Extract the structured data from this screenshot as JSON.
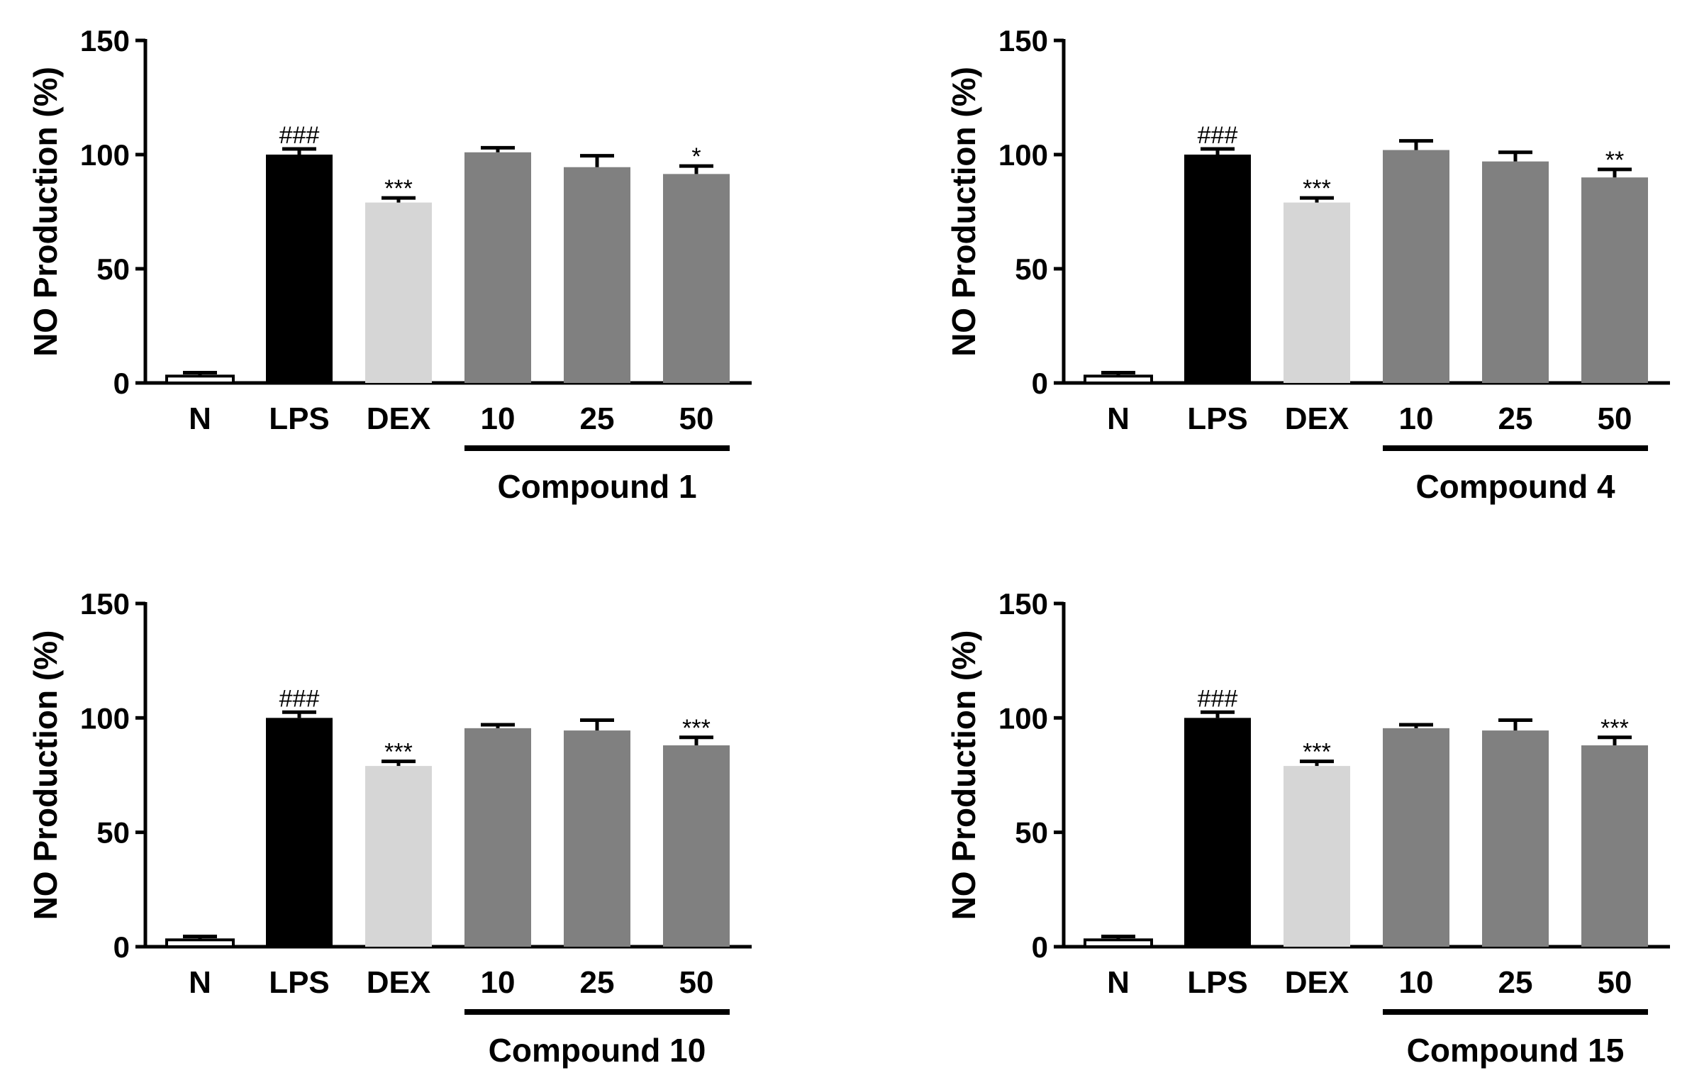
{
  "chart_data": [
    {
      "type": "bar",
      "ylabel": "NO Production (%)",
      "ylim": [
        0,
        150
      ],
      "yticks": [
        "0",
        "50",
        "100",
        "150"
      ],
      "categories": [
        "N",
        "LPS",
        "DEX",
        "10",
        "25",
        "50"
      ],
      "values": [
        3,
        100,
        79,
        101,
        94.5,
        91.5
      ],
      "errors": [
        1.5,
        2.5,
        2,
        2,
        5,
        3.5
      ],
      "colors": [
        "#ffffff",
        "#000000",
        "#d6d6d6",
        "#808080",
        "#808080",
        "#808080"
      ],
      "annotations": [
        "",
        "###",
        "***",
        "",
        "",
        "*"
      ],
      "group_label": "Compound 1",
      "group_categories": [
        "10",
        "25",
        "50"
      ]
    },
    {
      "type": "bar",
      "ylabel": "NO Production (%)",
      "ylim": [
        0,
        150
      ],
      "yticks": [
        "0",
        "50",
        "100",
        "150"
      ],
      "categories": [
        "N",
        "LPS",
        "DEX",
        "10",
        "25",
        "50"
      ],
      "values": [
        3,
        100,
        79,
        102,
        97,
        90
      ],
      "errors": [
        1.5,
        2.5,
        2,
        4,
        4,
        3.5
      ],
      "colors": [
        "#ffffff",
        "#000000",
        "#d6d6d6",
        "#808080",
        "#808080",
        "#808080"
      ],
      "annotations": [
        "",
        "###",
        "***",
        "",
        "",
        "**"
      ],
      "group_label": "Compound 4",
      "group_categories": [
        "10",
        "25",
        "50"
      ]
    },
    {
      "type": "bar",
      "ylabel": "NO Production (%)",
      "ylim": [
        0,
        150
      ],
      "yticks": [
        "0",
        "50",
        "100",
        "150"
      ],
      "categories": [
        "N",
        "LPS",
        "DEX",
        "10",
        "25",
        "50"
      ],
      "values": [
        3,
        100,
        79,
        95.5,
        94.5,
        88
      ],
      "errors": [
        1.5,
        2.5,
        2,
        1.5,
        4.5,
        3.5
      ],
      "colors": [
        "#ffffff",
        "#000000",
        "#d6d6d6",
        "#808080",
        "#808080",
        "#808080"
      ],
      "annotations": [
        "",
        "###",
        "***",
        "",
        "",
        "***"
      ],
      "group_label": "Compound 10",
      "group_categories": [
        "10",
        "25",
        "50"
      ]
    },
    {
      "type": "bar",
      "ylabel": "NO Production (%)",
      "ylim": [
        0,
        150
      ],
      "yticks": [
        "0",
        "50",
        "100",
        "150"
      ],
      "categories": [
        "N",
        "LPS",
        "DEX",
        "10",
        "25",
        "50"
      ],
      "values": [
        3,
        100,
        79,
        95.5,
        94.5,
        88
      ],
      "errors": [
        1.5,
        2.5,
        2,
        1.5,
        4.5,
        3.5
      ],
      "colors": [
        "#ffffff",
        "#000000",
        "#d6d6d6",
        "#808080",
        "#808080",
        "#808080"
      ],
      "annotations": [
        "",
        "###",
        "***",
        "",
        "",
        "***"
      ],
      "group_label": "Compound 15",
      "group_categories": [
        "10",
        "25",
        "50"
      ]
    }
  ]
}
